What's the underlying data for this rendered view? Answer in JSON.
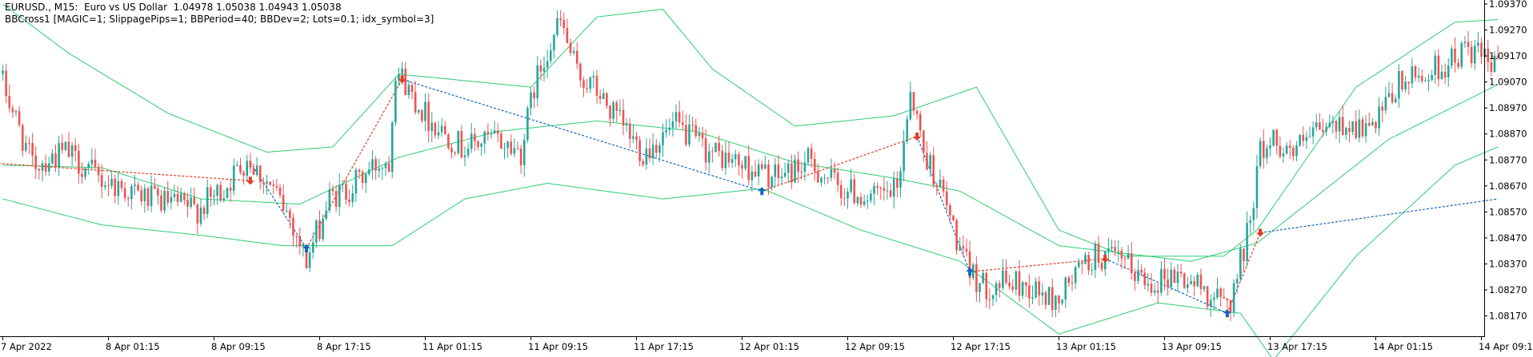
{
  "window": {
    "title": "EURUSD., M15:  Euro vs US Dollar  1.04978 1.05038 1.04943 1.05038",
    "ea_label": "BBCross1 [MAGIC=1; SlippagePips=1; BBPeriod=40; BBDev=2; Lots=0.1; idx_symbol=3]"
  },
  "colors": {
    "background": "#ffffff",
    "axis": "#000000",
    "bull_candle": "#26a69a",
    "bear_candle": "#ef5350",
    "bands": "#2ecc71",
    "buy_arrow": "#1565c0",
    "sell_arrow": "#e03c1f",
    "buy_trade_line": "#1565c0",
    "sell_trade_line": "#e03c1f"
  },
  "chart_data": {
    "type": "candlestick",
    "symbol": "EURUSD.",
    "timeframe": "M15",
    "ylim": [
      1.0808,
      1.0937
    ],
    "y_ticks": [
      1.0937,
      1.0927,
      1.0917,
      1.0907,
      1.0897,
      1.0887,
      1.0877,
      1.0867,
      1.0857,
      1.0847,
      1.0837,
      1.0827,
      1.0817
    ],
    "y_tick_labels": [
      "1.09370",
      "1.09270",
      "1.09170",
      "1.09070",
      "1.08970",
      "1.08870",
      "1.08770",
      "1.08670",
      "1.08570",
      "1.08470",
      "1.08370",
      "1.08270",
      "1.08170"
    ],
    "x_ticks": [
      {
        "bar": 0,
        "label": "7 Apr 2022"
      },
      {
        "bar": 32,
        "label": "8 Apr 01:15"
      },
      {
        "bar": 64,
        "label": "8 Apr 09:15"
      },
      {
        "bar": 96,
        "label": "8 Apr 17:15"
      },
      {
        "bar": 128,
        "label": "11 Apr 01:15"
      },
      {
        "bar": 160,
        "label": "11 Apr 09:15"
      },
      {
        "bar": 192,
        "label": "11 Apr 17:15"
      },
      {
        "bar": 224,
        "label": "12 Apr 01:15"
      },
      {
        "bar": 256,
        "label": "12 Apr 09:15"
      },
      {
        "bar": 288,
        "label": "12 Apr 17:15"
      },
      {
        "bar": 320,
        "label": "13 Apr 01:15"
      },
      {
        "bar": 352,
        "label": "13 Apr 09:15"
      },
      {
        "bar": 384,
        "label": "13 Apr 17:15"
      },
      {
        "bar": 416,
        "label": "14 Apr 01:15"
      },
      {
        "bar": 448,
        "label": "14 Apr 09:15"
      }
    ],
    "price_anchors": [
      {
        "bar": 0,
        "price": 1.091
      },
      {
        "bar": 10,
        "price": 1.0875
      },
      {
        "bar": 20,
        "price": 1.088
      },
      {
        "bar": 30,
        "price": 1.087
      },
      {
        "bar": 45,
        "price": 1.0862
      },
      {
        "bar": 60,
        "price": 1.0858
      },
      {
        "bar": 68,
        "price": 1.0866
      },
      {
        "bar": 75,
        "price": 1.0878
      },
      {
        "bar": 82,
        "price": 1.0867
      },
      {
        "bar": 88,
        "price": 1.0855
      },
      {
        "bar": 93,
        "price": 1.0838
      },
      {
        "bar": 100,
        "price": 1.0862
      },
      {
        "bar": 106,
        "price": 1.0866
      },
      {
        "bar": 115,
        "price": 1.0876
      },
      {
        "bar": 118,
        "price": 1.0877
      },
      {
        "bar": 120,
        "price": 1.0913
      },
      {
        "bar": 125,
        "price": 1.0902
      },
      {
        "bar": 130,
        "price": 1.0893
      },
      {
        "bar": 140,
        "price": 1.0882
      },
      {
        "bar": 150,
        "price": 1.0885
      },
      {
        "bar": 158,
        "price": 1.088
      },
      {
        "bar": 162,
        "price": 1.0905
      },
      {
        "bar": 166,
        "price": 1.092
      },
      {
        "bar": 170,
        "price": 1.093
      },
      {
        "bar": 175,
        "price": 1.091
      },
      {
        "bar": 180,
        "price": 1.0905
      },
      {
        "bar": 185,
        "price": 1.0896
      },
      {
        "bar": 195,
        "price": 1.088
      },
      {
        "bar": 205,
        "price": 1.089
      },
      {
        "bar": 215,
        "price": 1.088
      },
      {
        "bar": 225,
        "price": 1.0875
      },
      {
        "bar": 235,
        "price": 1.087
      },
      {
        "bar": 245,
        "price": 1.0876
      },
      {
        "bar": 255,
        "price": 1.0866
      },
      {
        "bar": 265,
        "price": 1.0862
      },
      {
        "bar": 272,
        "price": 1.0865
      },
      {
        "bar": 276,
        "price": 1.0905
      },
      {
        "bar": 280,
        "price": 1.088
      },
      {
        "bar": 284,
        "price": 1.087
      },
      {
        "bar": 288,
        "price": 1.0855
      },
      {
        "bar": 292,
        "price": 1.0838
      },
      {
        "bar": 298,
        "price": 1.0828
      },
      {
        "bar": 305,
        "price": 1.083
      },
      {
        "bar": 312,
        "price": 1.0828
      },
      {
        "bar": 320,
        "price": 1.0822
      },
      {
        "bar": 326,
        "price": 1.0833
      },
      {
        "bar": 332,
        "price": 1.084
      },
      {
        "bar": 340,
        "price": 1.0838
      },
      {
        "bar": 348,
        "price": 1.083
      },
      {
        "bar": 356,
        "price": 1.0833
      },
      {
        "bar": 364,
        "price": 1.0828
      },
      {
        "bar": 370,
        "price": 1.0822
      },
      {
        "bar": 373,
        "price": 1.0823
      },
      {
        "bar": 378,
        "price": 1.0848
      },
      {
        "bar": 382,
        "price": 1.088
      },
      {
        "bar": 386,
        "price": 1.0885
      },
      {
        "bar": 392,
        "price": 1.088
      },
      {
        "bar": 400,
        "price": 1.0888
      },
      {
        "bar": 408,
        "price": 1.0891
      },
      {
        "bar": 416,
        "price": 1.0888
      },
      {
        "bar": 424,
        "price": 1.0906
      },
      {
        "bar": 432,
        "price": 1.091
      },
      {
        "bar": 440,
        "price": 1.0915
      },
      {
        "bar": 445,
        "price": 1.092
      },
      {
        "bar": 450,
        "price": 1.0915
      },
      {
        "bar": 453,
        "price": 1.0912
      }
    ],
    "bollinger_bands": {
      "period": 40,
      "deviation": 2,
      "upper": [
        {
          "bar": 0,
          "price": 1.0937
        },
        {
          "bar": 20,
          "price": 1.0918
        },
        {
          "bar": 50,
          "price": 1.0895
        },
        {
          "bar": 80,
          "price": 1.088
        },
        {
          "bar": 100,
          "price": 1.0882
        },
        {
          "bar": 120,
          "price": 1.091
        },
        {
          "bar": 160,
          "price": 1.0905
        },
        {
          "bar": 180,
          "price": 1.0932
        },
        {
          "bar": 200,
          "price": 1.0935
        },
        {
          "bar": 215,
          "price": 1.0912
        },
        {
          "bar": 240,
          "price": 1.089
        },
        {
          "bar": 270,
          "price": 1.0894
        },
        {
          "bar": 295,
          "price": 1.0905
        },
        {
          "bar": 320,
          "price": 1.085
        },
        {
          "bar": 340,
          "price": 1.084
        },
        {
          "bar": 370,
          "price": 1.084
        },
        {
          "bar": 380,
          "price": 1.085
        },
        {
          "bar": 410,
          "price": 1.0905
        },
        {
          "bar": 440,
          "price": 1.093
        },
        {
          "bar": 453,
          "price": 1.0931
        }
      ],
      "middle": [
        {
          "bar": 0,
          "price": 1.0875
        },
        {
          "bar": 30,
          "price": 1.0874
        },
        {
          "bar": 60,
          "price": 1.0862
        },
        {
          "bar": 90,
          "price": 1.086
        },
        {
          "bar": 120,
          "price": 1.0878
        },
        {
          "bar": 150,
          "price": 1.0888
        },
        {
          "bar": 180,
          "price": 1.0892
        },
        {
          "bar": 210,
          "price": 1.0888
        },
        {
          "bar": 240,
          "price": 1.0876
        },
        {
          "bar": 270,
          "price": 1.087
        },
        {
          "bar": 290,
          "price": 1.0865
        },
        {
          "bar": 320,
          "price": 1.0844
        },
        {
          "bar": 360,
          "price": 1.0838
        },
        {
          "bar": 380,
          "price": 1.0845
        },
        {
          "bar": 420,
          "price": 1.0885
        },
        {
          "bar": 453,
          "price": 1.0906
        }
      ],
      "lower": [
        {
          "bar": 0,
          "price": 1.0862
        },
        {
          "bar": 30,
          "price": 1.0852
        },
        {
          "bar": 60,
          "price": 1.0848
        },
        {
          "bar": 85,
          "price": 1.0844
        },
        {
          "bar": 100,
          "price": 1.0844
        },
        {
          "bar": 118,
          "price": 1.0844
        },
        {
          "bar": 140,
          "price": 1.0862
        },
        {
          "bar": 165,
          "price": 1.0868
        },
        {
          "bar": 200,
          "price": 1.0862
        },
        {
          "bar": 230,
          "price": 1.0866
        },
        {
          "bar": 260,
          "price": 1.085
        },
        {
          "bar": 290,
          "price": 1.0838
        },
        {
          "bar": 320,
          "price": 1.081
        },
        {
          "bar": 350,
          "price": 1.0822
        },
        {
          "bar": 375,
          "price": 1.0818
        },
        {
          "bar": 385,
          "price": 1.08
        },
        {
          "bar": 410,
          "price": 1.084
        },
        {
          "bar": 440,
          "price": 1.0875
        },
        {
          "bar": 453,
          "price": 1.0882
        }
      ]
    },
    "trades": [
      {
        "type": "sell",
        "open_bar": -5,
        "open_price": 1.0876,
        "close_bar": 75,
        "close_price": 1.0869
      },
      {
        "type": "buy",
        "open_bar": 75,
        "open_price": 1.0876,
        "close_bar": 92,
        "close_price": 1.0843
      },
      {
        "type": "sell",
        "open_bar": 92,
        "open_price": 1.0843,
        "close_bar": 121,
        "close_price": 1.0908
      },
      {
        "type": "buy",
        "open_bar": 121,
        "open_price": 1.0908,
        "close_bar": 230,
        "close_price": 1.0865
      },
      {
        "type": "sell",
        "open_bar": 230,
        "open_price": 1.0865,
        "close_bar": 277,
        "close_price": 1.0886
      },
      {
        "type": "buy",
        "open_bar": 277,
        "open_price": 1.0886,
        "close_bar": 293,
        "close_price": 1.0834
      },
      {
        "type": "sell",
        "open_bar": 293,
        "open_price": 1.0834,
        "close_bar": 334,
        "close_price": 1.0839
      },
      {
        "type": "buy",
        "open_bar": 334,
        "open_price": 1.0839,
        "close_bar": 371,
        "close_price": 1.0818
      },
      {
        "type": "sell",
        "open_bar": 371,
        "open_price": 1.0818,
        "close_bar": 381,
        "close_price": 1.0849
      },
      {
        "type": "buy",
        "open_bar": 381,
        "open_price": 1.0849,
        "close_bar": 453,
        "close_price": 1.0862
      }
    ],
    "arrows": [
      {
        "type": "sell",
        "bar": 75,
        "price": 1.0869
      },
      {
        "type": "buy",
        "bar": 92,
        "price": 1.0843
      },
      {
        "type": "sell",
        "bar": 121,
        "price": 1.0908
      },
      {
        "type": "buy",
        "bar": 230,
        "price": 1.0865
      },
      {
        "type": "sell",
        "bar": 277,
        "price": 1.0886
      },
      {
        "type": "buy",
        "bar": 293,
        "price": 1.0834
      },
      {
        "type": "sell",
        "bar": 334,
        "price": 1.0839
      },
      {
        "type": "buy",
        "bar": 371,
        "price": 1.0818
      },
      {
        "type": "sell",
        "bar": 381,
        "price": 1.0849
      }
    ]
  }
}
